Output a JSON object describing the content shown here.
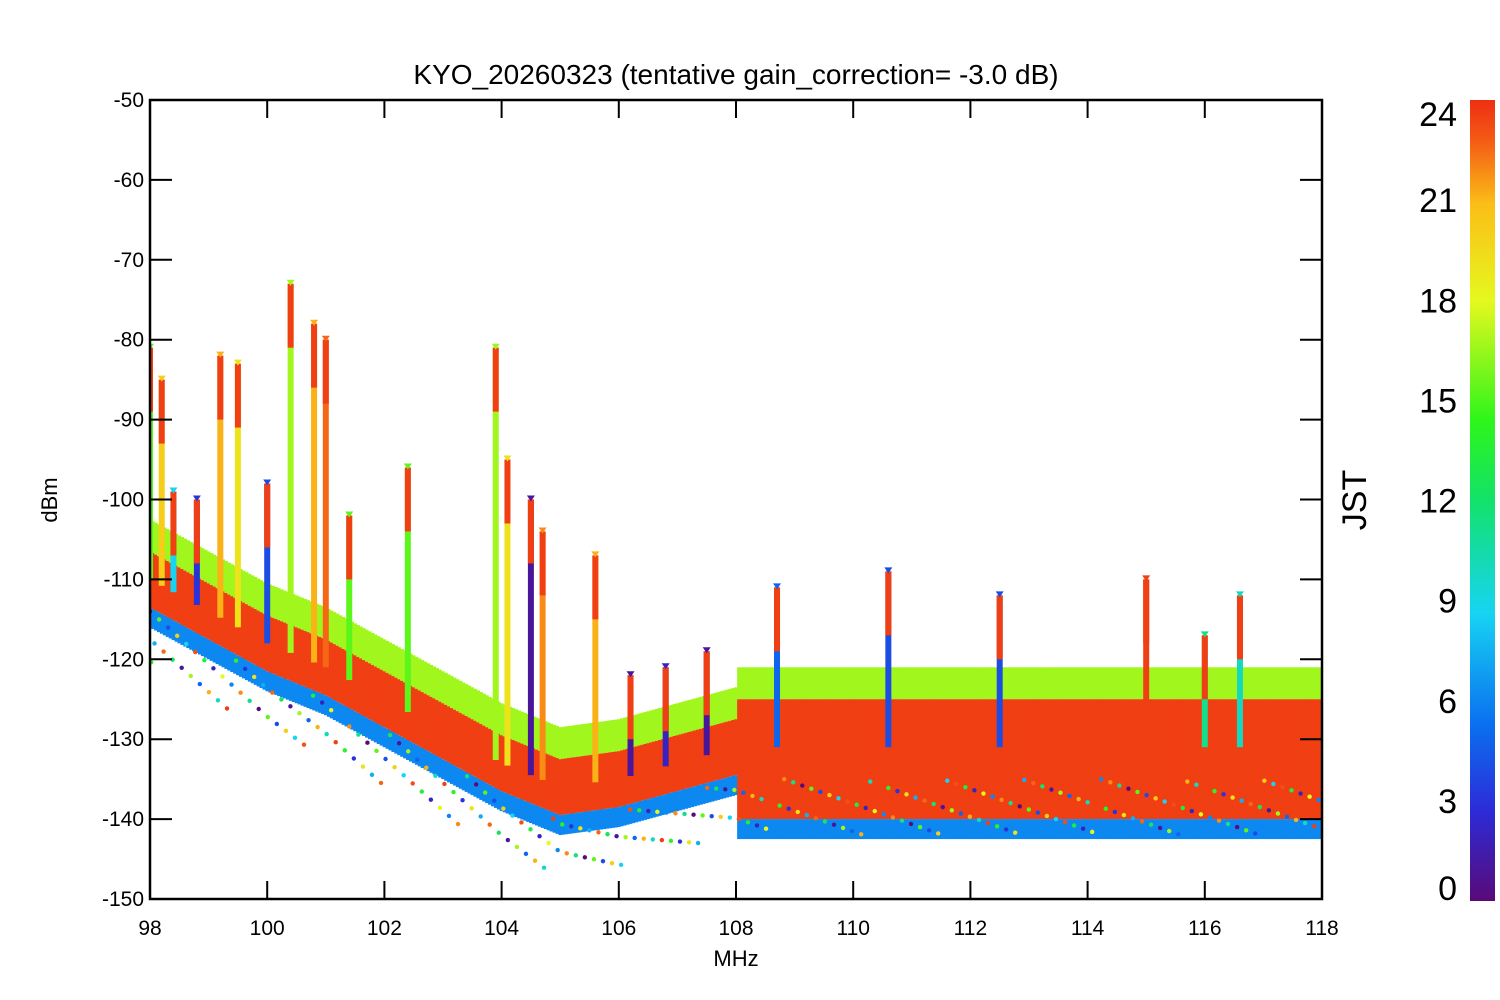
{
  "chart_data": {
    "type": "scatter",
    "title": "KYO_20260323 (tentative gain_correction= -3.0 dB)",
    "xlabel": "MHz",
    "ylabel": "dBm",
    "xlim": [
      98,
      118
    ],
    "ylim": [
      -150,
      -50
    ],
    "xticks": [
      98,
      100,
      102,
      104,
      106,
      108,
      110,
      112,
      114,
      116,
      118
    ],
    "yticks": [
      -50,
      -60,
      -70,
      -80,
      -90,
      -100,
      -110,
      -120,
      -130,
      -140,
      -150
    ],
    "colorbar": {
      "label": "JST",
      "range": [
        0,
        24
      ],
      "ticks": [
        0,
        3,
        6,
        9,
        12,
        15,
        18,
        21,
        24
      ],
      "colormap": "rainbow",
      "colors": [
        "#5a0a78",
        "#2d2ad6",
        "#0a6ff0",
        "#17d4f2",
        "#12e26a",
        "#2ef51a",
        "#e6f81e",
        "#fbbe17",
        "#f45a15",
        "#ee2f12"
      ]
    },
    "noise_floor": [
      {
        "x": 98.0,
        "y": -110
      },
      {
        "x": 99.0,
        "y": -114
      },
      {
        "x": 100.0,
        "y": -118
      },
      {
        "x": 101.0,
        "y": -121
      },
      {
        "x": 102.0,
        "y": -125
      },
      {
        "x": 103.0,
        "y": -129
      },
      {
        "x": 104.0,
        "y": -133
      },
      {
        "x": 105.0,
        "y": -136
      },
      {
        "x": 106.0,
        "y": -135
      },
      {
        "x": 107.0,
        "y": -133
      },
      {
        "x": 108.0,
        "y": -131
      },
      {
        "x": 118.0,
        "y": -131
      }
    ],
    "signal_peaks": [
      {
        "x": 98.0,
        "y": -81,
        "jst": 14
      },
      {
        "x": 98.2,
        "y": -85,
        "jst": 18
      },
      {
        "x": 98.4,
        "y": -99,
        "jst": 8
      },
      {
        "x": 98.8,
        "y": -100,
        "jst": 3
      },
      {
        "x": 99.2,
        "y": -82,
        "jst": 19
      },
      {
        "x": 99.5,
        "y": -83,
        "jst": 17
      },
      {
        "x": 100.0,
        "y": -98,
        "jst": 4
      },
      {
        "x": 100.4,
        "y": -73,
        "jst": 15
      },
      {
        "x": 100.8,
        "y": -78,
        "jst": 19
      },
      {
        "x": 101.0,
        "y": -80,
        "jst": 21
      },
      {
        "x": 101.4,
        "y": -102,
        "jst": 14
      },
      {
        "x": 102.4,
        "y": -96,
        "jst": 14
      },
      {
        "x": 103.9,
        "y": -81,
        "jst": 15
      },
      {
        "x": 104.1,
        "y": -95,
        "jst": 17
      },
      {
        "x": 104.5,
        "y": -100,
        "jst": 1
      },
      {
        "x": 104.7,
        "y": -104,
        "jst": 20
      },
      {
        "x": 105.6,
        "y": -107,
        "jst": 19
      },
      {
        "x": 106.2,
        "y": -122,
        "jst": 1
      },
      {
        "x": 106.8,
        "y": -121,
        "jst": 2
      },
      {
        "x": 107.5,
        "y": -119,
        "jst": 1
      },
      {
        "x": 108.7,
        "y": -111,
        "jst": 5
      },
      {
        "x": 110.6,
        "y": -109,
        "jst": 4
      },
      {
        "x": 112.5,
        "y": -112,
        "jst": 4
      },
      {
        "x": 115.0,
        "y": -110,
        "jst": 23
      },
      {
        "x": 116.0,
        "y": -117,
        "jst": 10
      },
      {
        "x": 116.6,
        "y": -112,
        "jst": 9
      }
    ]
  }
}
